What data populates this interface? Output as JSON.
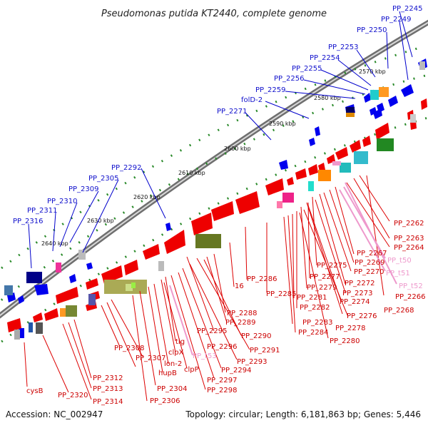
{
  "title": "Pseudomonas putida KT2440, complete genome",
  "footer": {
    "accession": "Accession: NC_002947",
    "summary": "Topology: circular; Length: 6,181,863 bp; Genes: 5,446"
  },
  "kbp_ticks": [
    "2570 kbp",
    "2580 kbp",
    "2590 kbp",
    "2600 kbp",
    "2610 kbp",
    "2620 kbp",
    "2630 kbp",
    "2640 kbp"
  ],
  "colors": {
    "forward_gene": "#0000ee",
    "reverse_gene": "#ee0000",
    "rna_gene": "#ee99cc",
    "backbone": "#777777",
    "tick": "#228822"
  },
  "upper_labels": [
    "PP_2245",
    "PP_2249",
    "PP_2250",
    "PP_2253",
    "PP_2254",
    "PP_2255",
    "PP_2256",
    "PP_2259",
    "folD-2",
    "PP_2271",
    "PP_2292",
    "PP_2305",
    "PP_2309",
    "PP_2310",
    "PP_2311",
    "PP_2316"
  ],
  "lower_labels": [
    "PP_2262",
    "PP_2263",
    "PP_2264",
    "PP_2267",
    "PP_t50",
    "PP_2269",
    "PP_t51",
    "PP_2270",
    "PP_t52",
    "PP_2266",
    "PP_2275",
    "PP_2272",
    "PP_2277",
    "PP_2268",
    "PP_2286",
    "PP_2273",
    "PP_2279",
    "PP_2274",
    "16",
    "PP_2285",
    "PP_2281",
    "PP_2282",
    "PP_2276",
    "PP_2283",
    "PP_2278",
    "PP_2288",
    "PP_2289",
    "PP_2284",
    "PP_2280",
    "PP_2290",
    "PP_2295",
    "tig",
    "PP_2291",
    "PP_2308",
    "clpX",
    "PP_2296",
    "PP_t53",
    "PP_2307",
    "lon-2",
    "PP_2293",
    "hupB",
    "clpP",
    "PP_2294",
    "PP_2312",
    "PP_2297",
    "PP_2313",
    "PP_2304",
    "PP_2298",
    "cysB",
    "PP_2320",
    "PP_2314",
    "PP_2306"
  ]
}
